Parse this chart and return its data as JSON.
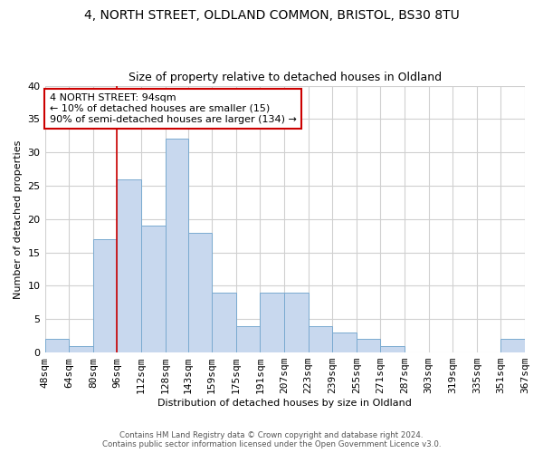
{
  "title": "4, NORTH STREET, OLDLAND COMMON, BRISTOL, BS30 8TU",
  "subtitle": "Size of property relative to detached houses in Oldland",
  "xlabel": "Distribution of detached houses by size in Oldland",
  "ylabel": "Number of detached properties",
  "bar_color": "#c8d8ee",
  "bar_edge_color": "#7aaad0",
  "grid_color": "#d0d0d0",
  "background_color": "#ffffff",
  "annotation_box_color": "#cc0000",
  "annotation_line_color": "#cc0000",
  "bins": [
    48,
    64,
    80,
    96,
    112,
    128,
    143,
    159,
    175,
    191,
    207,
    223,
    239,
    255,
    271,
    287,
    303,
    319,
    335,
    351,
    367
  ],
  "counts": [
    2,
    1,
    17,
    26,
    19,
    32,
    18,
    9,
    4,
    9,
    9,
    4,
    3,
    2,
    1,
    0,
    0,
    0,
    0,
    2
  ],
  "tick_labels": [
    "48sqm",
    "64sqm",
    "80sqm",
    "96sqm",
    "112sqm",
    "128sqm",
    "143sqm",
    "159sqm",
    "175sqm",
    "191sqm",
    "207sqm",
    "223sqm",
    "239sqm",
    "255sqm",
    "271sqm",
    "287sqm",
    "303sqm",
    "319sqm",
    "335sqm",
    "351sqm",
    "367sqm"
  ],
  "property_size_label": "4 NORTH STREET: 94sqm",
  "annotation_line1": "← 10% of detached houses are smaller (15)",
  "annotation_line2": "90% of semi-detached houses are larger (134) →",
  "vline_x": 96,
  "ylim": [
    0,
    40
  ],
  "yticks": [
    0,
    5,
    10,
    15,
    20,
    25,
    30,
    35,
    40
  ],
  "footer_line1": "Contains HM Land Registry data © Crown copyright and database right 2024.",
  "footer_line2": "Contains public sector information licensed under the Open Government Licence v3.0."
}
